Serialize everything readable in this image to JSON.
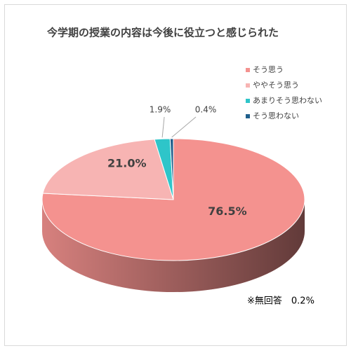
{
  "chart_data": {
    "type": "pie3d",
    "title": "今学期の授業の内容は今後に役立つと感じられた",
    "categories": [
      "そう思う",
      "ややそう思う",
      "あまりそう思わない",
      "そう思わない"
    ],
    "values": [
      76.5,
      21.0,
      1.9,
      0.4
    ],
    "value_labels": [
      "76.5%",
      "21.0%",
      "1.9%",
      "0.4%"
    ],
    "colors": [
      "#f4928f",
      "#f7b4b3",
      "#2ec5c9",
      "#1f5f8c"
    ],
    "legend": "top-right",
    "note": "※無回答　0.2%"
  }
}
